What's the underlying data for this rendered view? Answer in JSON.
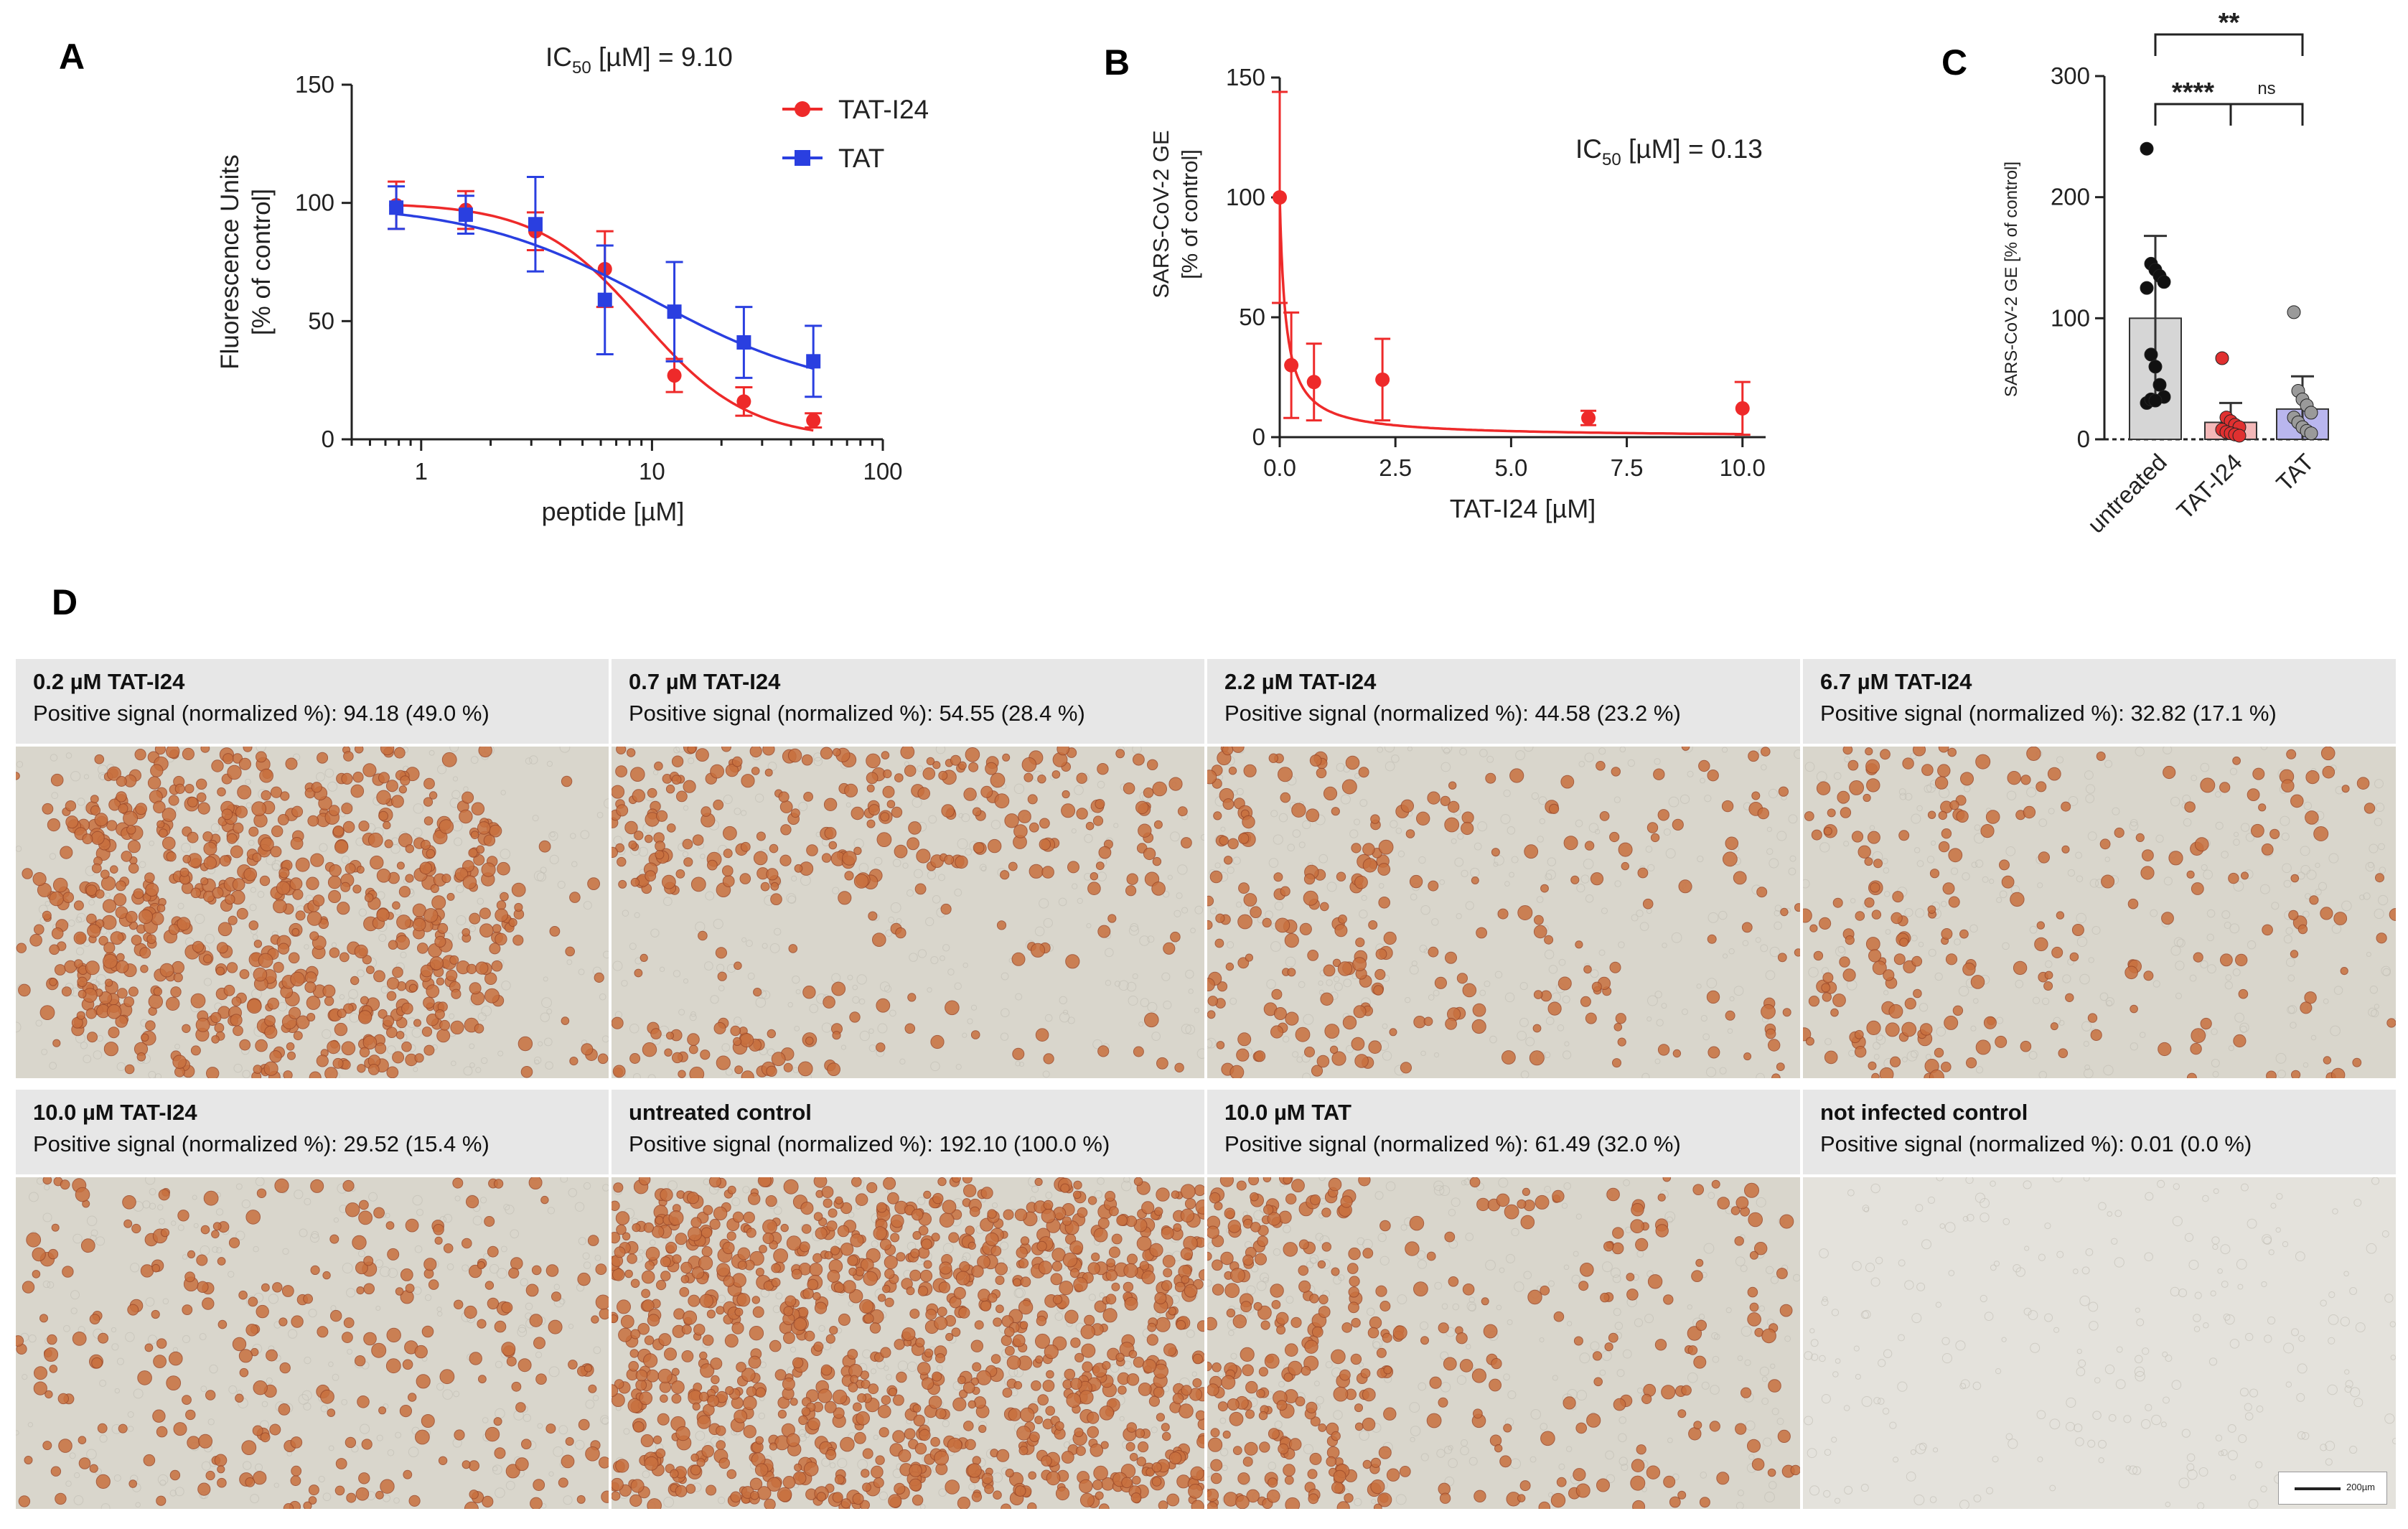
{
  "panel_labels": {
    "a": "A",
    "b": "B",
    "c": "C",
    "d": "D"
  },
  "colors": {
    "tat_i24": "#ee2a2a",
    "tat": "#2a3fe0",
    "untreated_bar": "#d6d6d6",
    "tat_i24_bar": "#f4b8b8",
    "tat_bar": "#b9b6ee",
    "stain": "#c8703f",
    "background_cells": "#d9d6cc",
    "header_gray": "#e7e7e7"
  },
  "chart_data": [
    {
      "panel": "A",
      "type": "line",
      "title": "",
      "annotation": {
        "text": "IC",
        "sub": "50",
        "rest": " [µM] = 9.10"
      },
      "xlabel": "peptide [µM]",
      "ylabel_line1": "Fluorescence Units",
      "ylabel_line2": "[% of control]",
      "xscale": "log",
      "xlim": [
        0.5,
        100
      ],
      "ylim": [
        0,
        150
      ],
      "xticks": [
        1,
        10,
        100
      ],
      "xtick_labels": [
        "1",
        "10",
        "100"
      ],
      "yticks": [
        0,
        50,
        100,
        150
      ],
      "ytick_labels": [
        "0",
        "50",
        "100",
        "150"
      ],
      "legend_position": "top-right",
      "series": [
        {
          "name": "TAT-I24",
          "marker": "circle",
          "color": "#ee2a2a",
          "x": [
            0.78,
            1.56,
            3.125,
            6.25,
            12.5,
            25,
            50
          ],
          "y": [
            99,
            97,
            88,
            72,
            27,
            16,
            8
          ],
          "err": [
            10,
            8,
            8,
            16,
            7,
            6,
            3
          ],
          "fit": {
            "top": 100,
            "bottom": 0,
            "ic50": 9.1,
            "hill": 1.9
          }
        },
        {
          "name": "TAT",
          "marker": "square",
          "color": "#2a3fe0",
          "x": [
            0.78,
            1.56,
            3.125,
            6.25,
            12.5,
            25,
            50
          ],
          "y": [
            98,
            95,
            91,
            59,
            54,
            41,
            33
          ],
          "err": [
            9,
            8,
            20,
            23,
            21,
            15,
            15
          ],
          "fit": {
            "top": 100,
            "bottom": 18,
            "ic50": 10,
            "hill": 1.1
          }
        }
      ]
    },
    {
      "panel": "B",
      "type": "line",
      "title": "",
      "annotation": {
        "text": "IC",
        "sub": "50",
        "rest": " [µM] = 0.13"
      },
      "xlabel": "TAT-I24 [µM]",
      "ylabel_line1": "SARS-CoV-2 GE",
      "ylabel_line2": "[% of control]",
      "xlim": [
        0,
        10.5
      ],
      "ylim": [
        0,
        150
      ],
      "xticks": [
        0,
        2.5,
        5,
        7.5,
        10
      ],
      "xtick_labels": [
        "0.0",
        "2.5",
        "5.0",
        "7.5",
        "10.0"
      ],
      "yticks": [
        0,
        50,
        100,
        150
      ],
      "ytick_labels": [
        "0",
        "50",
        "100",
        "150"
      ],
      "series": [
        {
          "name": "",
          "marker": "circle",
          "color": "#ee2a2a",
          "x": [
            0,
            0.25,
            0.74,
            2.22,
            6.67,
            10
          ],
          "y": [
            100,
            30,
            23,
            24,
            8,
            12
          ],
          "err": [
            44,
            22,
            16,
            17,
            3,
            11
          ],
          "fit": {
            "top": 100,
            "bottom": 0,
            "ic50": 0.13,
            "hill": 1
          }
        }
      ]
    },
    {
      "panel": "C",
      "type": "bar",
      "title": "",
      "xlabel": "",
      "ylabel": "SARS-CoV-2 GE [% of control]",
      "categories": [
        "untreated",
        "TAT-I24",
        "TAT"
      ],
      "values": [
        100,
        14,
        25
      ],
      "errors": [
        68,
        16,
        27
      ],
      "ylim": [
        0,
        300
      ],
      "yticks": [
        0,
        100,
        200,
        300
      ],
      "ytick_labels": [
        "0",
        "100",
        "200",
        "300"
      ],
      "points": [
        [
          240,
          145,
          140,
          135,
          130,
          125,
          70,
          60,
          45,
          35,
          30,
          33,
          32
        ],
        [
          67,
          18,
          15,
          12,
          10,
          8,
          6,
          5,
          4,
          3
        ],
        [
          105,
          40,
          33,
          28,
          22,
          18,
          14,
          10,
          7,
          5
        ]
      ],
      "point_colors": [
        "#111111",
        "#e03030",
        "#9a9a9a"
      ],
      "significance": [
        {
          "from": 0,
          "to": 1,
          "label": "****"
        },
        {
          "from": 1,
          "to": 2,
          "label": "ns"
        },
        {
          "from": 0,
          "to": 2,
          "label": "**"
        }
      ]
    }
  ],
  "microscopy": {
    "scale_bar_label": "200µm",
    "cells": [
      {
        "title": "0.2 µM TAT-I24",
        "signal": "Positive signal (normalized %): 94.18 (49.0 %)",
        "density": 0.88,
        "pattern": "center-blob"
      },
      {
        "title": "0.7 µM TAT-I24",
        "signal": "Positive signal (normalized %): 54.55 (28.4 %)",
        "density": 0.55,
        "pattern": "top-band"
      },
      {
        "title": "2.2 µM TAT-I24",
        "signal": "Positive signal (normalized %): 44.58 (23.2 %)",
        "density": 0.42,
        "pattern": "left-band"
      },
      {
        "title": "6.7 µM TAT-I24",
        "signal": "Positive signal (normalized %): 32.82 (17.1 %)",
        "density": 0.38,
        "pattern": "left-band"
      },
      {
        "title": "10.0 µM TAT-I24",
        "signal": "Positive signal (normalized %): 29.52 (15.4 %)",
        "density": 0.34,
        "pattern": "scatter"
      },
      {
        "title": "untreated control",
        "signal": "Positive signal (normalized %): 192.10 (100.0 %)",
        "density": 0.97,
        "pattern": "full"
      },
      {
        "title": "10.0 µM TAT",
        "signal": "Positive signal (normalized %): 61.49 (32.0 %)",
        "density": 0.6,
        "pattern": "left-band"
      },
      {
        "title": "not infected control",
        "signal": "Positive signal (normalized %): 0.01 (0.0 %)",
        "density": 0.0,
        "pattern": "none"
      }
    ]
  }
}
